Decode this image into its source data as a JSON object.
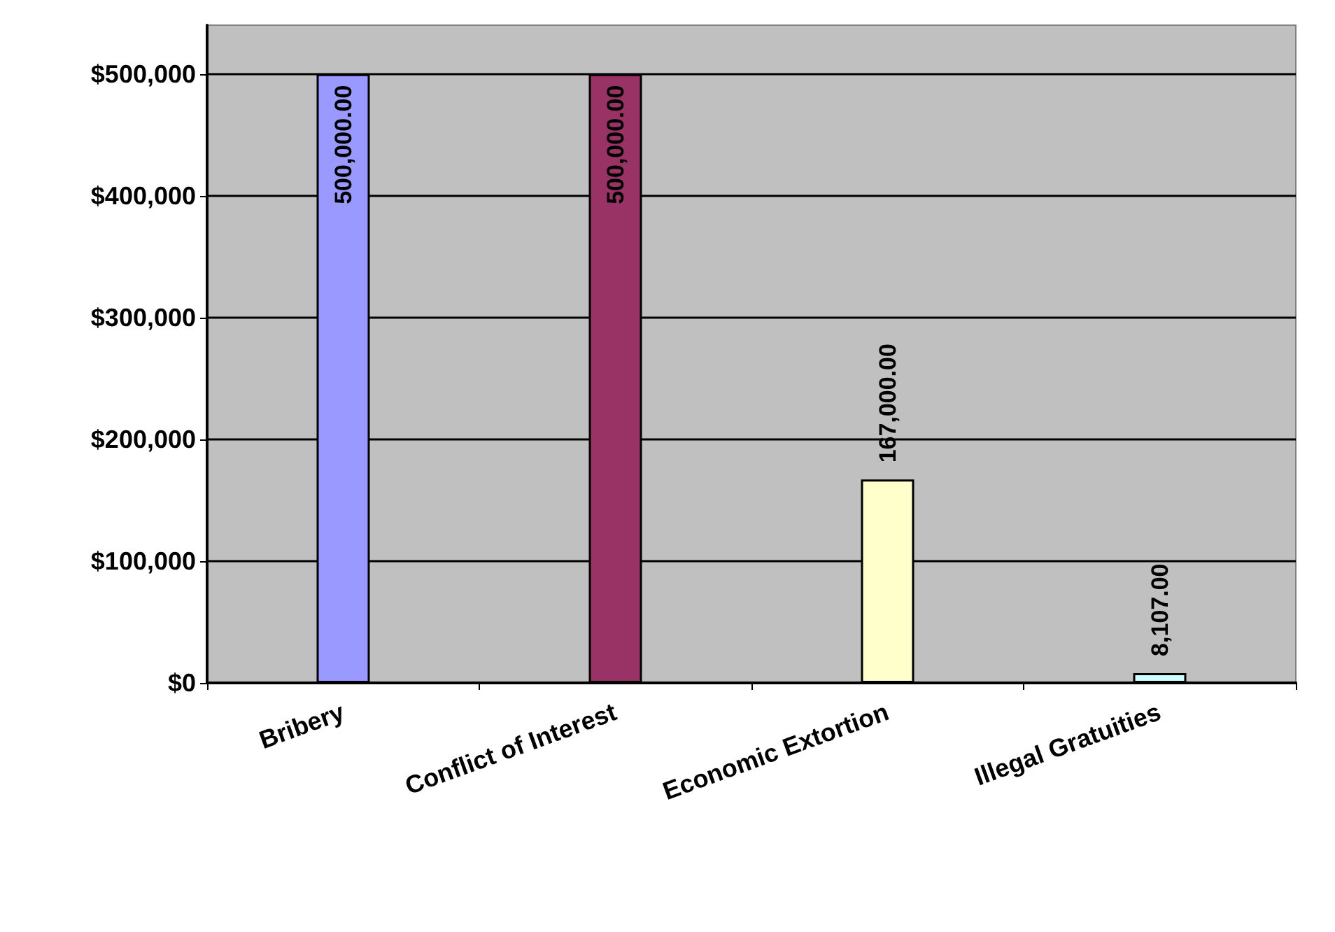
{
  "chart_data": {
    "type": "bar",
    "categories": [
      "Bribery",
      "Conflict of Interest",
      "Economic Extortion",
      "Illegal Gratuities"
    ],
    "values": [
      500000,
      500000,
      167000,
      8107
    ],
    "colors": [
      "#9999ff",
      "#993366",
      "#ffffcc",
      "#ccffff"
    ],
    "value_labels": [
      "500,000.00",
      "500,000.00",
      "167,000.00",
      "8,107.00"
    ],
    "ylim": [
      0,
      540000
    ],
    "yticks": [
      {
        "value": 0,
        "label": "$0"
      },
      {
        "value": 100000,
        "label": "$100,000"
      },
      {
        "value": 200000,
        "label": "$200,000"
      },
      {
        "value": 300000,
        "label": "$300,000"
      },
      {
        "value": 400000,
        "label": "$400,000"
      },
      {
        "value": 500000,
        "label": "$500,000"
      }
    ],
    "grid": "y"
  }
}
